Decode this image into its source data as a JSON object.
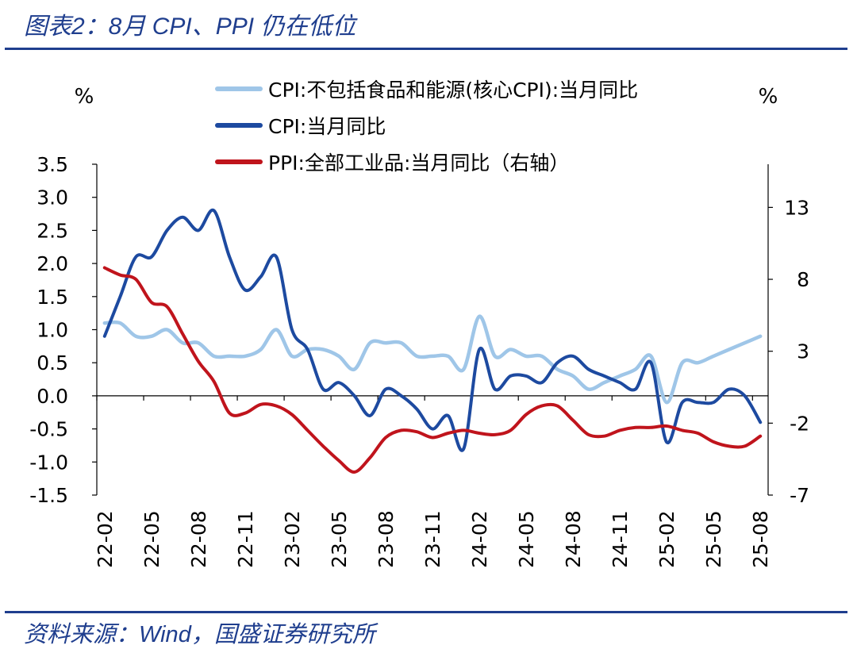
{
  "figure": {
    "title": "图表2：8月 CPI、PPI 仍在低位",
    "source": "资料来源：Wind，国盛证券研究所"
  },
  "colors": {
    "core_cpi": "#9fc6e8",
    "cpi": "#1d4aa0",
    "ppi": "#c0141c",
    "rule": "#1f3e8e"
  },
  "chart_data": {
    "type": "line",
    "x": [
      "22-02",
      "22-03",
      "22-04",
      "22-05",
      "22-06",
      "22-07",
      "22-08",
      "22-09",
      "22-10",
      "22-11",
      "22-12",
      "23-01",
      "23-02",
      "23-03",
      "23-04",
      "23-05",
      "23-06",
      "23-07",
      "23-08",
      "23-09",
      "23-10",
      "23-11",
      "23-12",
      "24-01",
      "24-02",
      "24-03",
      "24-04",
      "24-05",
      "24-06",
      "24-07",
      "24-08",
      "24-09",
      "24-10",
      "24-11",
      "24-12",
      "25-01",
      "25-02",
      "25-03",
      "25-04",
      "25-05",
      "25-06",
      "25-07",
      "25-08"
    ],
    "x_tick_labels": [
      "22-02",
      "22-05",
      "22-08",
      "22-11",
      "23-02",
      "23-05",
      "23-08",
      "23-11",
      "24-02",
      "24-05",
      "24-08",
      "24-11",
      "25-02",
      "25-05",
      "25-08"
    ],
    "left_axis": {
      "unit": "%",
      "ylim": [
        -1.5,
        3.5
      ],
      "ticks": [
        "3.5",
        "3.0",
        "2.5",
        "2.0",
        "1.5",
        "1.0",
        "0.5",
        "0.0",
        "-0.5",
        "-1.0",
        "-1.5"
      ]
    },
    "right_axis": {
      "unit": "%",
      "ylim": [
        -7,
        16
      ],
      "ticks": [
        "13",
        "8",
        "3",
        "-2",
        "-7"
      ]
    },
    "legend_position": "top",
    "grid": false,
    "series": [
      {
        "name": "CPI:不包括食品和能源(核心CPI):当月同比",
        "axis": "left",
        "color_key": "core_cpi",
        "values": [
          1.1,
          1.1,
          0.9,
          0.9,
          1.0,
          0.8,
          0.8,
          0.6,
          0.6,
          0.6,
          0.7,
          1.0,
          0.6,
          0.7,
          0.7,
          0.6,
          0.4,
          0.8,
          0.8,
          0.8,
          0.6,
          0.6,
          0.6,
          0.4,
          1.2,
          0.6,
          0.7,
          0.6,
          0.6,
          0.4,
          0.3,
          0.1,
          0.2,
          0.3,
          0.4,
          0.6,
          -0.1,
          0.5,
          0.5,
          0.6,
          0.7,
          0.8,
          0.9
        ]
      },
      {
        "name": "CPI:当月同比",
        "axis": "left",
        "color_key": "cpi",
        "values": [
          0.9,
          1.5,
          2.1,
          2.1,
          2.5,
          2.7,
          2.5,
          2.8,
          2.1,
          1.6,
          1.8,
          2.1,
          1.0,
          0.7,
          0.1,
          0.2,
          0.0,
          -0.3,
          0.1,
          0.0,
          -0.2,
          -0.5,
          -0.3,
          -0.8,
          0.7,
          0.1,
          0.3,
          0.3,
          0.2,
          0.5,
          0.6,
          0.4,
          0.3,
          0.2,
          0.1,
          0.5,
          -0.7,
          -0.1,
          -0.1,
          -0.1,
          0.1,
          0.0,
          -0.4
        ]
      },
      {
        "name": "PPI:全部工业品:当月同比（右轴）",
        "axis": "right",
        "color_key": "ppi",
        "values": [
          8.8,
          8.3,
          8.0,
          6.4,
          6.1,
          4.2,
          2.3,
          0.9,
          -1.3,
          -1.3,
          -0.7,
          -0.8,
          -1.4,
          -2.5,
          -3.6,
          -4.6,
          -5.4,
          -4.4,
          -3.0,
          -2.5,
          -2.6,
          -3.0,
          -2.7,
          -2.5,
          -2.7,
          -2.8,
          -2.5,
          -1.4,
          -0.8,
          -0.8,
          -1.8,
          -2.8,
          -2.9,
          -2.5,
          -2.3,
          -2.3,
          -2.2,
          -2.5,
          -2.7,
          -3.3,
          -3.6,
          -3.6,
          -2.9
        ]
      }
    ]
  }
}
